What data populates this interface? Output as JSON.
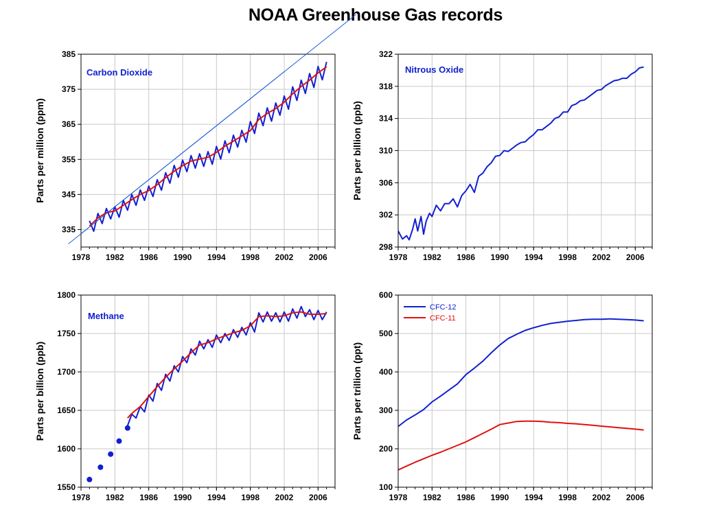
{
  "page": {
    "title": "NOAA Greenhouse Gas records"
  },
  "colors": {
    "blue": "#1020d0",
    "red": "#e01010",
    "trend_line": "#1a5fd8",
    "grid": "#c8c8c8"
  },
  "chart_data": [
    {
      "id": "co2",
      "type": "line",
      "label": "Carbon Dioxide",
      "ylabel": "Parts per million (ppm)",
      "xlim": [
        1978,
        2008
      ],
      "ylim": [
        330,
        385
      ],
      "xticks": [
        "1978",
        "1982",
        "1986",
        "1990",
        "1994",
        "1998",
        "2002",
        "2006"
      ],
      "yticks": [
        "335",
        "345",
        "355",
        "365",
        "375",
        "385"
      ],
      "series": [
        {
          "name": "",
          "color": "#1020d0",
          "x": [
            1979,
            1979.5,
            1980,
            1980.5,
            1981,
            1981.5,
            1982,
            1982.5,
            1983,
            1983.5,
            1984,
            1984.5,
            1985,
            1985.5,
            1986,
            1986.5,
            1987,
            1987.5,
            1988,
            1988.5,
            1989,
            1989.5,
            1990,
            1990.5,
            1991,
            1991.5,
            1992,
            1992.5,
            1993,
            1993.5,
            1994,
            1994.5,
            1995,
            1995.5,
            1996,
            1996.5,
            1997,
            1997.5,
            1998,
            1998.5,
            1999,
            1999.5,
            2000,
            2000.5,
            2001,
            2001.5,
            2002,
            2002.5,
            2003,
            2003.5,
            2004,
            2004.5,
            2005,
            2005.5,
            2006,
            2006.5,
            2007
          ],
          "values": [
            337.5,
            334.5,
            339.6,
            336.7,
            341,
            338,
            341.5,
            338.5,
            343.3,
            340.5,
            345,
            341.9,
            346.3,
            343.3,
            347.4,
            344.4,
            349.2,
            346.2,
            351.2,
            348.2,
            353.3,
            349.9,
            354.8,
            351.5,
            356.1,
            352.5,
            356.6,
            353,
            357.2,
            353.6,
            358.7,
            355.1,
            360.3,
            356.9,
            361.9,
            358.5,
            363.3,
            359.9,
            365.8,
            362.4,
            368.2,
            364.6,
            369.7,
            365.9,
            371.1,
            367.6,
            373.1,
            369.3,
            375.7,
            371.8,
            377.6,
            373.8,
            379.5,
            375.5,
            381.5,
            377.7,
            382.8
          ]
        },
        {
          "name": "",
          "color": "#e01010",
          "x": [
            1979,
            1980,
            1981,
            1982,
            1983,
            1984,
            1985,
            1986,
            1987,
            1988,
            1989,
            1990,
            1991,
            1992,
            1993,
            1994,
            1995,
            1996,
            1997,
            1998,
            1999,
            2000,
            2001,
            2002,
            2003,
            2004,
            2005,
            2006,
            2007
          ],
          "values": [
            336,
            338.3,
            339.8,
            340.3,
            341.9,
            343.5,
            345,
            346.1,
            347.8,
            349.8,
            351.6,
            353.2,
            354.5,
            355.1,
            355.6,
            357,
            358.8,
            360.2,
            361.7,
            363.2,
            366.4,
            368.1,
            369.5,
            371.3,
            373.7,
            375.8,
            377.6,
            379.7,
            381.4
          ]
        },
        {
          "name": "",
          "color": "#1a5fd8",
          "x": [
            1975,
            2002
          ],
          "values": [
            328,
            380
          ]
        }
      ]
    },
    {
      "id": "n2o",
      "type": "line",
      "label": "Nitrous Oxide",
      "ylabel": "Parts per billion (ppb)",
      "xlim": [
        1978,
        2008
      ],
      "ylim": [
        298,
        322
      ],
      "xticks": [
        "1978",
        "1982",
        "1986",
        "1990",
        "1994",
        "1998",
        "2002",
        "2006"
      ],
      "yticks": [
        "298",
        "302",
        "306",
        "310",
        "314",
        "318",
        "322"
      ],
      "series": [
        {
          "name": "",
          "color": "#1020d0",
          "x": [
            1978,
            1978.5,
            1979,
            1979.3,
            1979.7,
            1980,
            1980.3,
            1980.7,
            1981,
            1981.3,
            1981.7,
            1982,
            1982.5,
            1983,
            1983.5,
            1984,
            1984.5,
            1985,
            1985.5,
            1986,
            1986.5,
            1987,
            1987.5,
            1988,
            1988.5,
            1989,
            1989.5,
            1990,
            1990.5,
            1991,
            1991.5,
            1992,
            1992.5,
            1993,
            1993.5,
            1994,
            1994.5,
            1995,
            1995.5,
            1996,
            1996.5,
            1997,
            1997.5,
            1998,
            1998.5,
            1999,
            1999.5,
            2000,
            2000.5,
            2001,
            2001.5,
            2002,
            2002.5,
            2003,
            2003.5,
            2004,
            2004.5,
            2005,
            2005.5,
            2006,
            2006.5,
            2007
          ],
          "values": [
            300,
            299,
            299.4,
            298.9,
            300.2,
            301.5,
            300,
            301.8,
            299.6,
            301.2,
            302.2,
            301.8,
            303.2,
            302.5,
            303.4,
            303.4,
            304,
            303,
            304.4,
            305,
            305.8,
            304.8,
            306.8,
            307.2,
            308,
            308.5,
            309.3,
            309.4,
            310,
            309.9,
            310.3,
            310.7,
            311,
            311.1,
            311.6,
            312,
            312.6,
            312.6,
            313,
            313.4,
            314,
            314.2,
            314.8,
            314.8,
            315.6,
            315.8,
            316.2,
            316.3,
            316.7,
            317.1,
            317.5,
            317.6,
            318.1,
            318.4,
            318.7,
            318.8,
            319,
            319,
            319.5,
            319.8,
            320.3,
            320.4
          ]
        }
      ]
    },
    {
      "id": "ch4",
      "type": "line",
      "label": "Methane",
      "ylabel": "Parts per billion (ppb)",
      "xlim": [
        1978,
        2008
      ],
      "ylim": [
        1550,
        1800
      ],
      "xticks": [
        "1978",
        "1982",
        "1986",
        "1990",
        "1994",
        "1998",
        "2002",
        "2006"
      ],
      "yticks": [
        "1550",
        "1600",
        "1650",
        "1700",
        "1750",
        "1800"
      ],
      "series": [
        {
          "name": "",
          "color": "#1020d0",
          "x": [
            1983.5,
            1984,
            1984.5,
            1985,
            1985.5,
            1986,
            1986.5,
            1987,
            1987.5,
            1988,
            1988.5,
            1989,
            1989.5,
            1990,
            1990.5,
            1991,
            1991.5,
            1992,
            1992.5,
            1993,
            1993.5,
            1994,
            1994.5,
            1995,
            1995.5,
            1996,
            1996.5,
            1997,
            1997.5,
            1998,
            1998.5,
            1999,
            1999.5,
            2000,
            2000.5,
            2001,
            2001.5,
            2002,
            2002.5,
            2003,
            2003.5,
            2004,
            2004.5,
            2005,
            2005.5,
            2006,
            2006.5,
            2007
          ],
          "values": [
            1630,
            1645,
            1640,
            1655,
            1648,
            1670,
            1662,
            1685,
            1676,
            1697,
            1688,
            1708,
            1700,
            1720,
            1712,
            1730,
            1722,
            1740,
            1730,
            1742,
            1732,
            1748,
            1738,
            1750,
            1741,
            1755,
            1745,
            1758,
            1748,
            1764,
            1752,
            1777,
            1765,
            1778,
            1766,
            1777,
            1765,
            1778,
            1766,
            1782,
            1770,
            1785,
            1772,
            1781,
            1768,
            1780,
            1768,
            1778
          ]
        },
        {
          "name": "",
          "color": "#e01010",
          "x": [
            1983.5,
            1984,
            1985,
            1986,
            1987,
            1988,
            1989,
            1990,
            1991,
            1992,
            1993,
            1994,
            1995,
            1996,
            1997,
            1998,
            1999,
            2000,
            2001,
            2002,
            2003,
            2004,
            2005,
            2006,
            2007
          ],
          "values": [
            1640,
            1646,
            1655,
            1668,
            1681,
            1693,
            1704,
            1714,
            1725,
            1735,
            1738,
            1743,
            1747,
            1751,
            1754,
            1760,
            1772,
            1773,
            1772,
            1773,
            1777,
            1778,
            1775,
            1775,
            1776
          ]
        },
        {
          "name": "",
          "color": "#1020d0",
          "style": "markers",
          "x": [
            1979,
            1980.3,
            1981.5,
            1982.5,
            1983.5
          ],
          "values": [
            1560,
            1576,
            1593,
            1610,
            1627
          ]
        }
      ]
    },
    {
      "id": "cfc",
      "type": "line",
      "label": "",
      "ylabel": "Parts per trillion (ppt)",
      "xlim": [
        1978,
        2008
      ],
      "ylim": [
        100,
        600
      ],
      "xticks": [
        "1978",
        "1982",
        "1986",
        "1990",
        "1994",
        "1998",
        "2002",
        "2006"
      ],
      "yticks": [
        "100",
        "200",
        "300",
        "400",
        "500",
        "600"
      ],
      "legend_position": "top-left",
      "series": [
        {
          "name": "CFC-12",
          "color": "#1020d0",
          "x": [
            1978,
            1979,
            1980,
            1981,
            1982,
            1983,
            1984,
            1985,
            1986,
            1987,
            1988,
            1989,
            1990,
            1991,
            1992,
            1993,
            1994,
            1995,
            1996,
            1997,
            1998,
            1999,
            2000,
            2001,
            2002,
            2003,
            2004,
            2005,
            2006,
            2007
          ],
          "values": [
            258,
            275,
            288,
            302,
            322,
            337,
            353,
            369,
            393,
            410,
            428,
            450,
            470,
            487,
            498,
            508,
            515,
            521,
            526,
            529,
            532,
            534,
            536,
            537,
            537,
            538,
            537,
            536,
            535,
            533
          ]
        },
        {
          "name": "CFC-11",
          "color": "#e01010",
          "x": [
            1978,
            1979,
            1980,
            1981,
            1982,
            1983,
            1984,
            1985,
            1986,
            1987,
            1988,
            1989,
            1990,
            1991,
            1992,
            1993,
            1994,
            1995,
            1996,
            1997,
            1998,
            1999,
            2000,
            2001,
            2002,
            2003,
            2004,
            2005,
            2006,
            2007
          ],
          "values": [
            145,
            155,
            165,
            174,
            183,
            191,
            200,
            209,
            218,
            229,
            240,
            251,
            263,
            267,
            271,
            272,
            272,
            271,
            269,
            268,
            266,
            265,
            263,
            261,
            259,
            257,
            255,
            253,
            251,
            249
          ]
        }
      ]
    }
  ]
}
